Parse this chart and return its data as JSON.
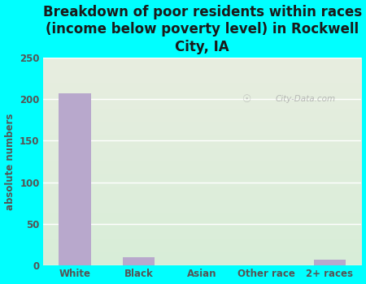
{
  "title": "Breakdown of poor residents within races\n(income below poverty level) in Rockwell\nCity, IA",
  "categories": [
    "White",
    "Black",
    "Asian",
    "Other race",
    "2+ races"
  ],
  "values": [
    207,
    10,
    0,
    0,
    7
  ],
  "bar_color": "#b8a8cc",
  "ylabel": "absolute numbers",
  "ylim": [
    0,
    250
  ],
  "yticks": [
    0,
    50,
    100,
    150,
    200,
    250
  ],
  "background_color": "#00ffff",
  "plot_bg_color_top": "#e8ede0",
  "plot_bg_color_bottom": "#d8edd8",
  "title_fontsize": 12,
  "axis_label_fontsize": 8.5,
  "tick_fontsize": 8.5,
  "watermark_text": "City-Data.com",
  "title_color": "#1a1a1a",
  "tick_color": "#555555",
  "ylabel_color": "#555555",
  "grid_color": "#ffffff",
  "bar_edge_color": "none"
}
